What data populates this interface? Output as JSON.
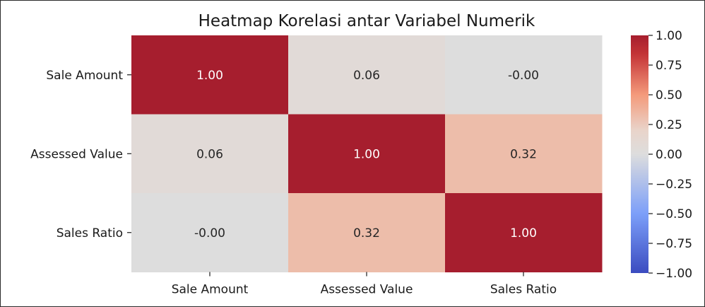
{
  "chart_data": {
    "type": "heatmap",
    "title": "Heatmap Korelasi antar Variabel Numerik",
    "row_labels": [
      "Sale Amount",
      "Assessed Value",
      "Sales Ratio"
    ],
    "col_labels": [
      "Sale Amount",
      "Assessed Value",
      "Sales Ratio"
    ],
    "values": [
      [
        1.0,
        0.06,
        -0.0
      ],
      [
        0.06,
        1.0,
        0.32
      ],
      [
        -0.0,
        0.32,
        1.0
      ]
    ],
    "cell_labels": [
      [
        "1.00",
        "0.06",
        "-0.00"
      ],
      [
        "0.06",
        "1.00",
        "0.32"
      ],
      [
        "-0.00",
        "0.32",
        "1.00"
      ]
    ],
    "colormap": "coolwarm",
    "vmin": -1.0,
    "vmax": 1.0,
    "colorbar_ticks": [
      "1.00",
      "0.75",
      "0.50",
      "0.25",
      "0.00",
      "−0.25",
      "−0.50",
      "−0.75",
      "−1.00"
    ],
    "colorbar_values": [
      1.0,
      0.75,
      0.5,
      0.25,
      0.0,
      -0.25,
      -0.5,
      -0.75,
      -1.0
    ],
    "colors": {
      "low": "#3b4cc0",
      "mid": "#dddddd",
      "high": "#b40426",
      "text_dark": "#262626",
      "text_light": "#ffffff"
    }
  }
}
